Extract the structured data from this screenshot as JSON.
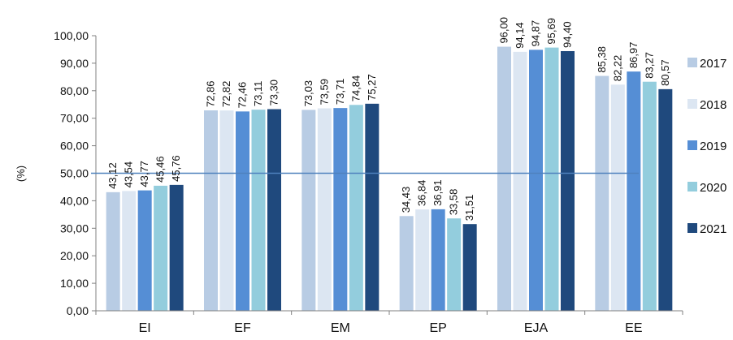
{
  "chart_data": {
    "type": "bar",
    "ylabel": "(%)",
    "ylim": [
      0,
      100
    ],
    "ytick_step": 10,
    "yticks": [
      "0,00",
      "10,00",
      "20,00",
      "30,00",
      "40,00",
      "50,00",
      "60,00",
      "70,00",
      "80,00",
      "90,00",
      "100,00"
    ],
    "categories": [
      "EI",
      "EF",
      "EM",
      "EP",
      "EJA",
      "EE"
    ],
    "series": [
      {
        "name": "2017",
        "color": "#b8cce4",
        "values": [
          43.12,
          72.86,
          73.03,
          34.43,
          96.0,
          85.38
        ],
        "labels": [
          "43,12",
          "72,86",
          "73,03",
          "34,43",
          "96,00",
          "85,38"
        ]
      },
      {
        "name": "2018",
        "color": "#dce6f2",
        "values": [
          43.54,
          72.82,
          73.59,
          36.84,
          94.14,
          82.22
        ],
        "labels": [
          "43,54",
          "72,82",
          "73,59",
          "36,84",
          "94,14",
          "82,22"
        ]
      },
      {
        "name": "2019",
        "color": "#558ed5",
        "values": [
          43.77,
          72.46,
          73.71,
          36.91,
          94.87,
          86.97
        ],
        "labels": [
          "43,77",
          "72,46",
          "73,71",
          "36,91",
          "94,87",
          "86,97"
        ]
      },
      {
        "name": "2020",
        "color": "#93cddd",
        "values": [
          45.46,
          73.11,
          74.84,
          33.58,
          95.69,
          83.27
        ],
        "labels": [
          "45,46",
          "73,11",
          "74,84",
          "33,58",
          "95,69",
          "83,27"
        ]
      },
      {
        "name": "2021",
        "color": "#1f497d",
        "values": [
          45.76,
          73.3,
          75.27,
          31.51,
          94.4,
          80.57
        ],
        "labels": [
          "45,76",
          "73,30",
          "75,27",
          "31,51",
          "94,40",
          "80,57"
        ]
      }
    ],
    "reference_line": {
      "value": 50,
      "color": "#4f81bd"
    },
    "grid": false,
    "legend_position": "right"
  }
}
